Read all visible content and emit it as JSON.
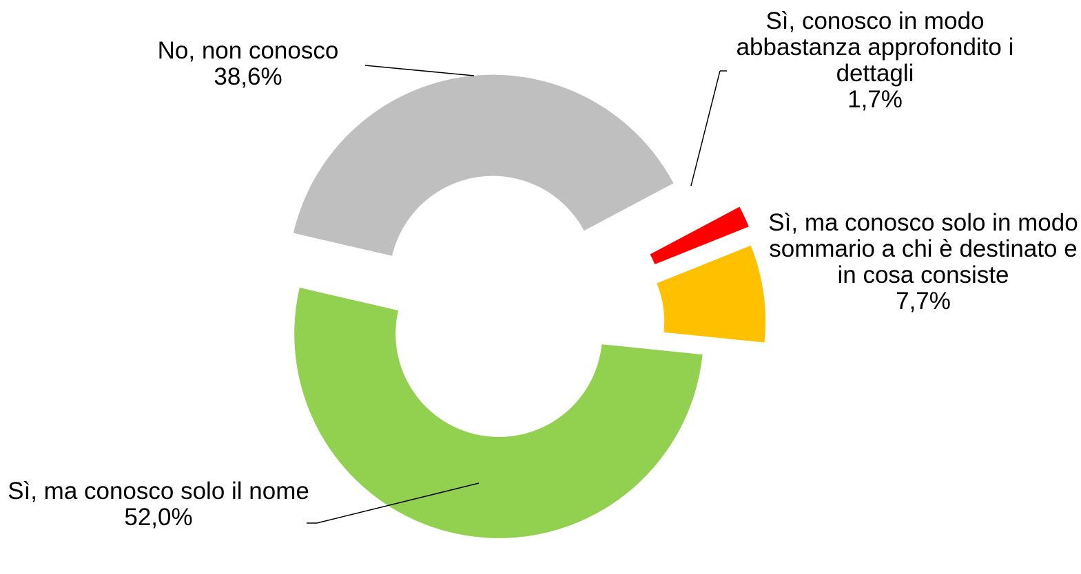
{
  "chart_data": {
    "type": "donut",
    "categories": [
      "Sì, conosco in modo abbastanza approfondito i dettagli",
      "Sì, ma conosco solo in modo sommario a chi è destinato e in cosa consiste",
      "Sì, ma conosco solo il nome",
      "No, non conosco"
    ],
    "values": [
      1.7,
      7.7,
      52.0,
      38.6
    ],
    "value_labels": [
      "1,7%",
      "7,7%",
      "52,0%",
      "38,6%"
    ],
    "colors": [
      "#ff0000",
      "#ffc000",
      "#92d050",
      "#bfbfbf"
    ]
  }
}
